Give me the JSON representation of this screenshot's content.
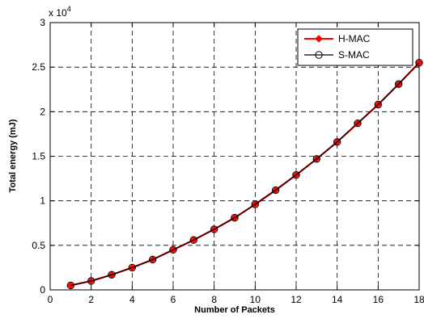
{
  "chart_data": {
    "type": "line",
    "title": "",
    "xlabel": "Number of Packets",
    "ylabel": "Total energy (mJ)",
    "y_scale_base": "x 10",
    "y_scale_exp": "4",
    "xlim": [
      0,
      18
    ],
    "ylim": [
      0,
      3
    ],
    "x_ticks": [
      0,
      2,
      4,
      6,
      8,
      10,
      12,
      14,
      16,
      18
    ],
    "x_tick_labels": [
      "0",
      "2",
      "4",
      "6",
      "8",
      "10",
      "12",
      "14",
      "16",
      "18"
    ],
    "y_ticks": [
      0,
      0.5,
      1,
      1.5,
      2,
      2.5,
      3
    ],
    "y_tick_labels": [
      "0",
      "0.5",
      "1",
      "1.5",
      "2",
      "2.5",
      "3"
    ],
    "grid": true,
    "legend_position": "top-right",
    "x": [
      1,
      2,
      3,
      4,
      5,
      6,
      7,
      8,
      9,
      10,
      11,
      12,
      13,
      14,
      15,
      16,
      17,
      18
    ],
    "series": [
      {
        "name": "H-MAC",
        "color": "#ff0000",
        "marker": "diamond-filled",
        "values": [
          0.05,
          0.1,
          0.17,
          0.25,
          0.34,
          0.45,
          0.56,
          0.68,
          0.81,
          0.96,
          1.12,
          1.29,
          1.47,
          1.66,
          1.87,
          2.08,
          2.31,
          2.55
        ]
      },
      {
        "name": "S-MAC",
        "color": "#000000",
        "marker": "circle-open",
        "values": [
          0.05,
          0.1,
          0.17,
          0.25,
          0.34,
          0.45,
          0.56,
          0.68,
          0.81,
          0.96,
          1.12,
          1.29,
          1.47,
          1.66,
          1.87,
          2.08,
          2.31,
          2.55
        ]
      }
    ]
  }
}
